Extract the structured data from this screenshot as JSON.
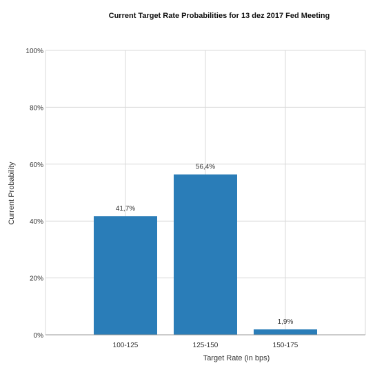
{
  "chart_data": {
    "type": "bar",
    "title": "Current Target Rate Probabilities for 13 dez 2017 Fed Meeting",
    "xlabel": "Target Rate (in bps)",
    "ylabel": "Current Probability",
    "categories": [
      "100-125",
      "125-150",
      "150-175"
    ],
    "values": [
      41.7,
      56.4,
      1.9
    ],
    "value_labels": [
      "41,7%",
      "56,4%",
      "1,9%"
    ],
    "ylim": [
      0,
      100
    ],
    "yticks": [
      0,
      20,
      40,
      60,
      80,
      100
    ],
    "ytick_labels": [
      "0%",
      "20%",
      "40%",
      "60%",
      "80%",
      "100%"
    ],
    "grid": true,
    "legend": "none",
    "bar_color": "#2a7db8"
  }
}
